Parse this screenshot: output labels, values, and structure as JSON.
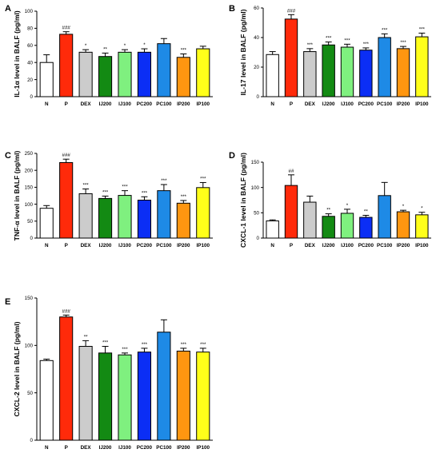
{
  "chart_data": [
    {
      "panel": "A",
      "type": "bar",
      "ylabel": "IL-1α level in BALF (pg/ml)",
      "ylim": [
        0,
        100
      ],
      "yticks": [
        "0",
        "20",
        "40",
        "60",
        "80",
        "100"
      ],
      "categories": [
        "N",
        "P",
        "DEX",
        "IJ200",
        "IJ100",
        "PC200",
        "PC100",
        "IP200",
        "IP100"
      ],
      "values": [
        40,
        73,
        52,
        47,
        52,
        52,
        62,
        46,
        56
      ],
      "errors": [
        9,
        3,
        3,
        4,
        3,
        4,
        6,
        4,
        3
      ],
      "significance": [
        "",
        "###",
        "*",
        "**",
        "*",
        "*",
        "",
        "***",
        ""
      ],
      "colors": [
        "#ffffff",
        "#ff2a0a",
        "#cccccc",
        "#138a13",
        "#7ff07f",
        "#0b2ef5",
        "#1e8ae6",
        "#ff9610",
        "#ffff1a"
      ]
    },
    {
      "panel": "B",
      "type": "bar",
      "ylabel": "IL-17 level in BALF (pg/ml)",
      "ylim": [
        0,
        60
      ],
      "yticks": [
        "0",
        "20",
        "40",
        "60"
      ],
      "categories": [
        "N",
        "P",
        "DEX",
        "IJ200",
        "IJ100",
        "PC200",
        "PC100",
        "IP200",
        "IP100"
      ],
      "values": [
        28.5,
        52.5,
        30.5,
        35,
        33.5,
        31.5,
        40,
        32.5,
        40.5
      ],
      "errors": [
        2,
        3,
        2,
        2,
        2,
        1.5,
        2.5,
        1.5,
        2.5
      ],
      "significance": [
        "",
        "###",
        "***",
        "***",
        "***",
        "***",
        "***",
        "***",
        "***"
      ],
      "colors": [
        "#ffffff",
        "#ff2a0a",
        "#cccccc",
        "#138a13",
        "#7ff07f",
        "#0b2ef5",
        "#1e8ae6",
        "#ff9610",
        "#ffff1a"
      ]
    },
    {
      "panel": "C",
      "type": "bar",
      "ylabel": "TNF-α level in BALF (pg/ml)",
      "ylim": [
        0,
        250
      ],
      "yticks": [
        "0",
        "50",
        "100",
        "150",
        "200",
        "250"
      ],
      "categories": [
        "N",
        "P",
        "DEX",
        "IJ200",
        "IJ100",
        "PC200",
        "PC100",
        "IP200",
        "IP100"
      ],
      "values": [
        88,
        223,
        131,
        117,
        126,
        112,
        140,
        103,
        149
      ],
      "errors": [
        8,
        10,
        14,
        7,
        14,
        10,
        18,
        8,
        15
      ],
      "significance": [
        "",
        "###",
        "***",
        "***",
        "***",
        "***",
        "***",
        "***",
        "***"
      ],
      "colors": [
        "#ffffff",
        "#ff2a0a",
        "#cccccc",
        "#138a13",
        "#7ff07f",
        "#0b2ef5",
        "#1e8ae6",
        "#ff9610",
        "#ffff1a"
      ]
    },
    {
      "panel": "D",
      "type": "bar",
      "ylabel": "CXCL-1 level in BALF (pg/ml)",
      "ylim": [
        0,
        150
      ],
      "yticks": [
        "0",
        "50",
        "100",
        "150"
      ],
      "categories": [
        "N",
        "P",
        "DEX",
        "IJ200",
        "IJ100",
        "PC200",
        "PC100",
        "IP200",
        "IP100"
      ],
      "values": [
        34,
        104,
        71,
        43,
        49,
        41,
        84,
        52,
        46
      ],
      "errors": [
        2,
        21,
        12,
        5,
        8,
        4,
        26,
        3,
        5
      ],
      "significance": [
        "",
        "##",
        "",
        "**",
        "*",
        "**",
        "",
        "*",
        "*"
      ],
      "colors": [
        "#ffffff",
        "#ff2a0a",
        "#cccccc",
        "#138a13",
        "#7ff07f",
        "#0b2ef5",
        "#1e8ae6",
        "#ff9610",
        "#ffff1a"
      ]
    },
    {
      "panel": "E",
      "type": "bar",
      "ylabel": "CXCL-2 level in BALF (pg/ml)",
      "ylim": [
        0,
        150
      ],
      "yticks": [
        "0",
        "50",
        "100",
        "150"
      ],
      "categories": [
        "N",
        "P",
        "DEX",
        "IJ200",
        "IJ100",
        "PC200",
        "PC100",
        "IP200",
        "IP100"
      ],
      "values": [
        84,
        130,
        99,
        92,
        90,
        93,
        114,
        94,
        93
      ],
      "errors": [
        1.5,
        2,
        6,
        7,
        2,
        4,
        13,
        3,
        4
      ],
      "significance": [
        "",
        "###",
        "**",
        "***",
        "***",
        "***",
        "",
        "***",
        "***"
      ],
      "colors": [
        "#ffffff",
        "#ff2a0a",
        "#cccccc",
        "#138a13",
        "#7ff07f",
        "#0b2ef5",
        "#1e8ae6",
        "#ff9610",
        "#ffff1a"
      ]
    }
  ]
}
